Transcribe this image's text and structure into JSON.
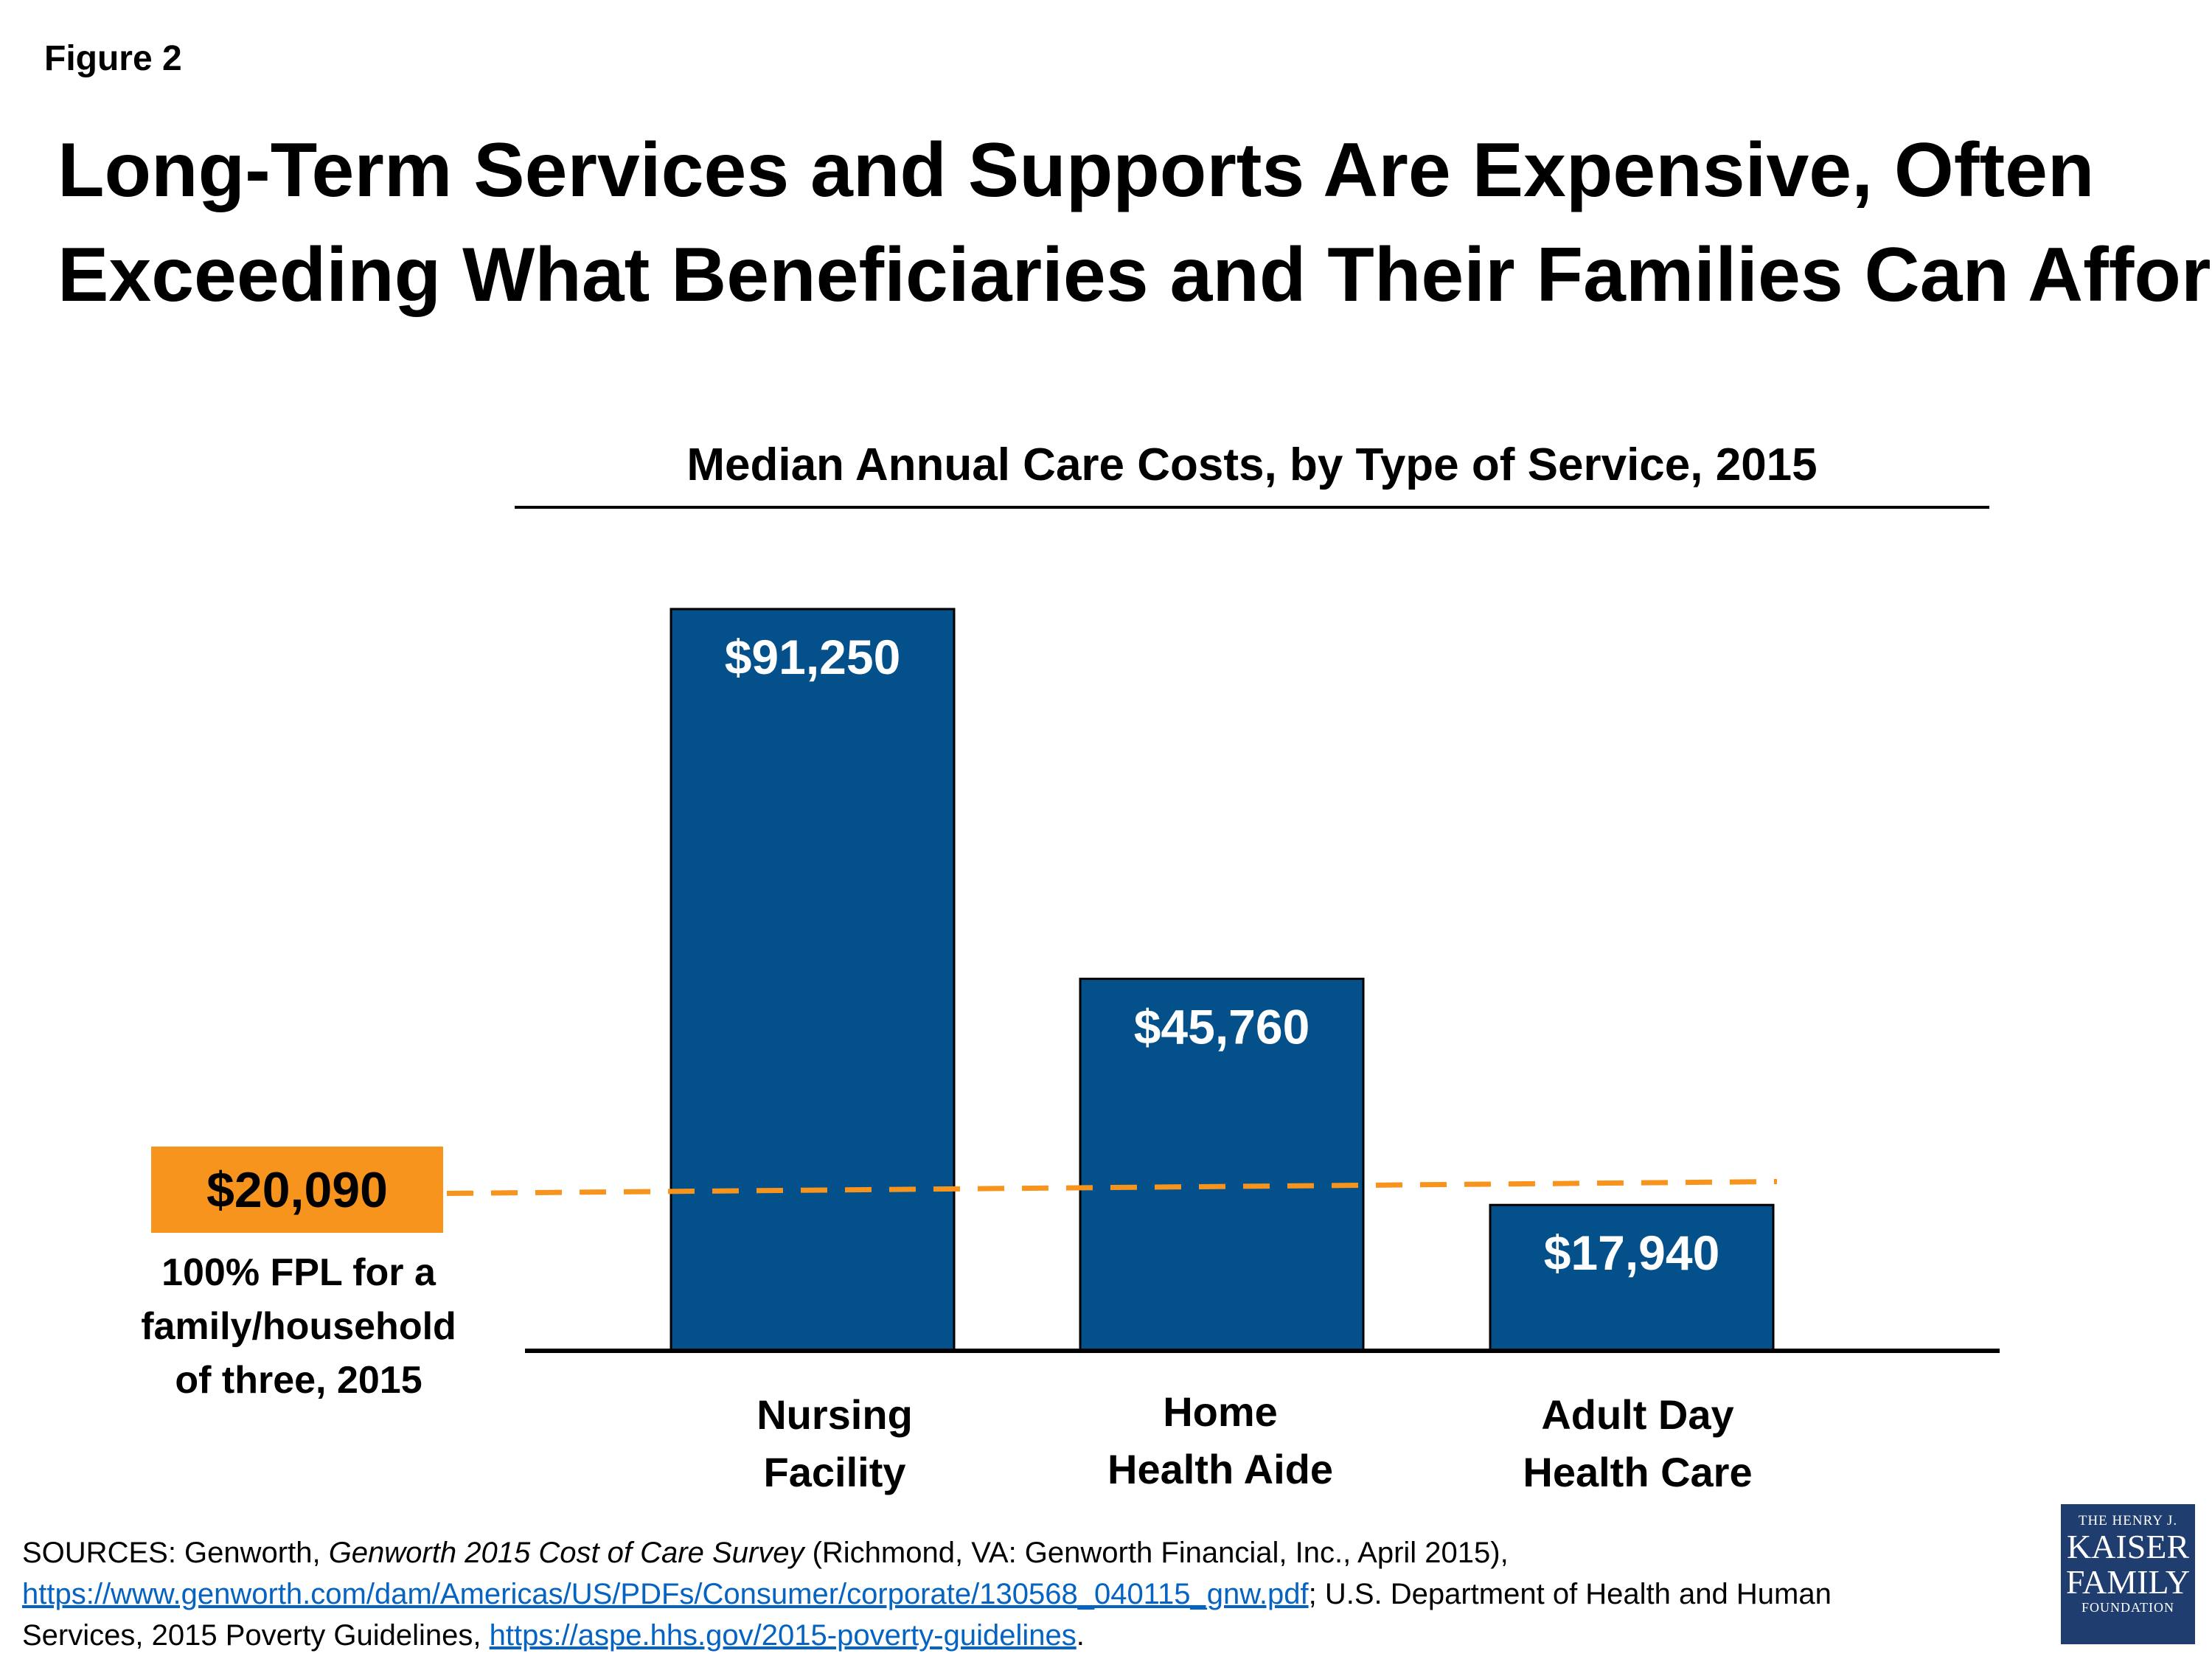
{
  "figure_label": "Figure 2",
  "title_line1": "Long-Term Services and Supports Are Expensive, Often",
  "title_line2": "Exceeding What Beneficiaries and Their Families Can Afford",
  "chart_data": {
    "type": "bar",
    "title": "Median Annual Care Costs, by Type of Service, 2015",
    "categories": [
      "Nursing Facility",
      "Home Health Aide",
      "Adult Day Health Care"
    ],
    "category_lines": [
      [
        "Nursing",
        "Facility"
      ],
      [
        "Home",
        "Health Aide"
      ],
      [
        "Adult Day",
        "Health Care"
      ]
    ],
    "values": [
      91250,
      45760,
      17940
    ],
    "value_labels": [
      "$91,250",
      "$45,760",
      "$17,940"
    ],
    "ylim": [
      0,
      91250
    ],
    "reference_line": {
      "value": 20090,
      "label": "$20,090",
      "caption": "100% FPL for a family/household of three, 2015",
      "caption_lines": [
        "100% FPL for a",
        "family/household",
        "of three, 2015"
      ]
    },
    "colors": {
      "bar": "#03508a",
      "reference": "#f7941d",
      "value_text": "#ffffff"
    }
  },
  "sources": {
    "prefix": "SOURCES: Genworth, ",
    "italic": "Genworth 2015 Cost of Care Survey",
    "mid": " (Richmond, VA: Genworth Financial, Inc., April 2015),",
    "link1": "https://www.genworth.com/dam/Americas/US/PDFs/Consumer/corporate/130568_040115_gnw.pdf",
    "mid2": "; U.S. Department of Health and Human",
    "line3": "Services, 2015 Poverty Guidelines, ",
    "link2": "https://aspe.hhs.gov/2015-poverty-guidelines",
    "end": "."
  },
  "logo": {
    "line1": "THE HENRY J.",
    "line2": "KAISER",
    "line3": "FAMILY",
    "line4": "FOUNDATION"
  }
}
